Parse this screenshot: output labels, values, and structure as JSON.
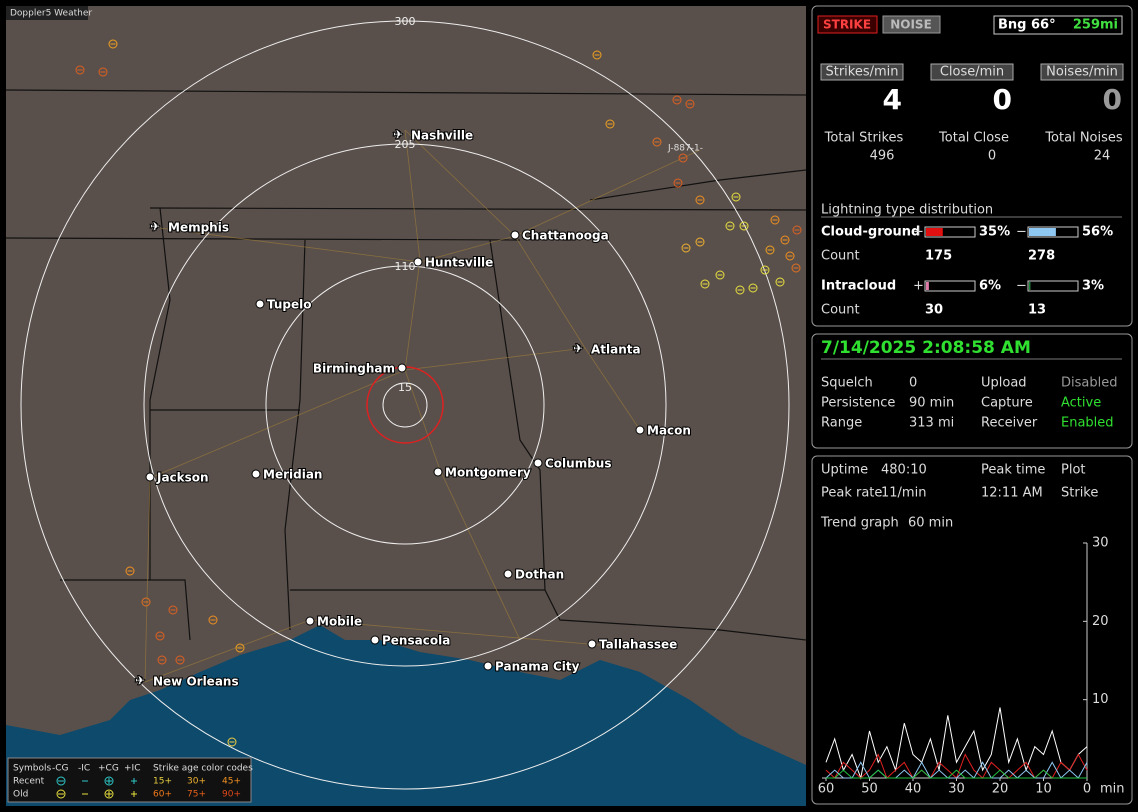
{
  "header": {
    "app_label": "Doppler5 Weather"
  },
  "map": {
    "ring_labels": [
      "300",
      "205",
      "110",
      "15"
    ],
    "cities": [
      "Nashville",
      "Memphis",
      "Chattanooga",
      "Huntsville",
      "Tupelo",
      "Birmingham",
      "Atlanta",
      "Macon",
      "Jackson",
      "Meridian",
      "Montgomery",
      "Columbus",
      "Dothan",
      "Mobile",
      "Pensacola",
      "Panama City",
      "Tallahassee",
      "New Orleans"
    ],
    "track_label": "J-887-1-"
  },
  "legend": {
    "symbols_label": "Symbols",
    "symbol_headers": [
      "-CG",
      "-IC",
      "+CG",
      "+IC"
    ],
    "age_label": "Strike age color codes",
    "rows": [
      {
        "name": "Recent",
        "ages": [
          "15+",
          "30+",
          "45+"
        ]
      },
      {
        "name": "Old",
        "ages": [
          "60+",
          "75+",
          "90+"
        ]
      }
    ]
  },
  "status": {
    "mode_buttons": [
      "STRIKE",
      "NOISE"
    ],
    "bearing": "Bng 66°",
    "distance": "259mi"
  },
  "rates": [
    {
      "label": "Strikes/min",
      "value": "4",
      "total_label": "Total Strikes",
      "total": "496"
    },
    {
      "label": "Close/min",
      "value": "0",
      "total_label": "Total Close",
      "total": "0"
    },
    {
      "label": "Noises/min",
      "value": "0",
      "total_label": "Total Noises",
      "total": "24"
    }
  ],
  "distribution": {
    "title": "Lightning type distribution",
    "count_label": "Count",
    "signs": [
      "+",
      "−"
    ],
    "rows": [
      {
        "name": "Cloud-ground",
        "positive": {
          "value": 35,
          "label": "35%",
          "color": "#e01010"
        },
        "negative": {
          "value": 56,
          "label": "56%",
          "color": "#8ec8f2"
        },
        "positive_count": "175",
        "negative_count": "278"
      },
      {
        "name": "Intracloud",
        "positive": {
          "value": 6,
          "label": "6%",
          "color": "#e07aa8"
        },
        "negative": {
          "value": 3,
          "label": "3%",
          "color": "#1d8a3a"
        },
        "positive_count": "30",
        "negative_count": "13"
      }
    ]
  },
  "status_panel": {
    "datetime": "7/14/2025 2:08:58 AM",
    "rows": [
      [
        "Squelch",
        "0",
        "Upload",
        "Disabled"
      ],
      [
        "Persistence",
        "90 min",
        "Capture",
        "Active"
      ],
      [
        "Range",
        "313 mi",
        "Receiver",
        "Enabled"
      ]
    ]
  },
  "stats": {
    "rows": [
      [
        "Uptime",
        "480:10",
        "Peak time",
        "Plot"
      ],
      [
        "Peak rate",
        "11/min",
        "12:11 AM",
        "Strike"
      ],
      [
        "Trend graph",
        "60 min"
      ]
    ]
  },
  "trend_graph": {
    "type": "line",
    "unit": "min",
    "xlim": [
      60,
      0
    ],
    "ylim": [
      0,
      30
    ],
    "yticks": [
      10,
      20,
      30
    ],
    "xticks": [
      60,
      50,
      40,
      30,
      20,
      10,
      0
    ],
    "x": [
      60,
      58,
      56,
      54,
      52,
      50,
      48,
      46,
      44,
      42,
      40,
      38,
      36,
      34,
      32,
      30,
      28,
      26,
      24,
      22,
      20,
      18,
      16,
      14,
      12,
      10,
      8,
      6,
      4,
      2,
      0
    ],
    "series": [
      {
        "color": "#ffffff",
        "values": [
          2,
          5,
          1,
          3,
          0,
          6,
          2,
          4,
          1,
          7,
          3,
          2,
          5,
          1,
          8,
          2,
          4,
          6,
          1,
          3,
          9,
          2,
          5,
          1,
          4,
          3,
          6,
          2,
          1,
          3,
          4
        ]
      },
      {
        "color": "#e02020",
        "values": [
          1,
          0,
          2,
          1,
          0,
          1,
          3,
          0,
          1,
          2,
          0,
          1,
          0,
          2,
          1,
          0,
          3,
          1,
          0,
          2,
          1,
          0,
          1,
          2,
          0,
          1,
          0,
          2,
          1,
          3,
          1
        ]
      },
      {
        "color": "#8ec8f2",
        "values": [
          0,
          1,
          0,
          0,
          2,
          0,
          1,
          0,
          0,
          1,
          0,
          2,
          0,
          1,
          0,
          0,
          1,
          0,
          2,
          0,
          0,
          1,
          0,
          1,
          0,
          0,
          2,
          0,
          1,
          0,
          2
        ]
      },
      {
        "color": "#20c040",
        "values": [
          0,
          0,
          1,
          0,
          0,
          0,
          1,
          0,
          0,
          0,
          0,
          1,
          0,
          0,
          0,
          1,
          0,
          0,
          0,
          0,
          1,
          0,
          0,
          0,
          0,
          1,
          0,
          0,
          0,
          0,
          0
        ]
      }
    ]
  }
}
